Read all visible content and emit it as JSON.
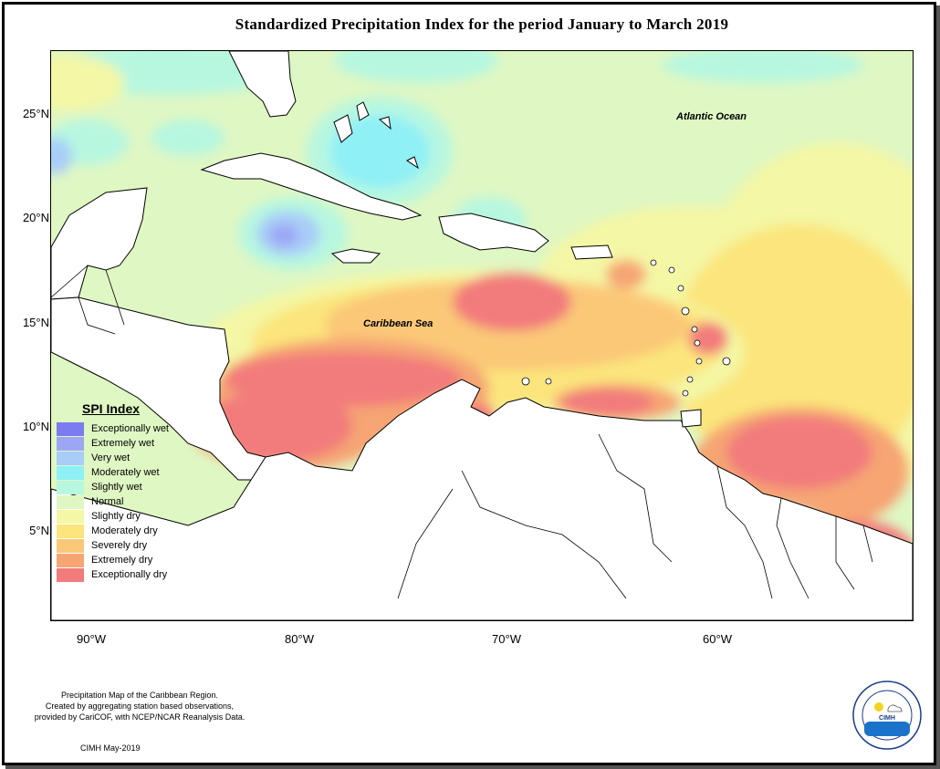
{
  "title": "Standardized Precipitation Index for the period January to March 2019",
  "axes": {
    "lat_labels": [
      "25°N",
      "20°N",
      "15°N",
      "10°N",
      "5°N"
    ],
    "lon_labels": [
      "90°W",
      "80°W",
      "70°W",
      "60°W"
    ]
  },
  "map_labels": {
    "atlantic": "Atlantic Ocean",
    "caribbean": "Caribbean Sea"
  },
  "legend": {
    "title": "SPI Index",
    "items": [
      {
        "label": "Exceptionally wet",
        "color": "#7b7cf0"
      },
      {
        "label": "Extremely wet",
        "color": "#9da6f5"
      },
      {
        "label": "Very wet",
        "color": "#a8cdf8"
      },
      {
        "label": "Moderately wet",
        "color": "#8ff0f6"
      },
      {
        "label": "Slightly wet",
        "color": "#b7f7e0"
      },
      {
        "label": "Normal",
        "color": "#dff7c3"
      },
      {
        "label": "Slightly dry",
        "color": "#f4f7a4"
      },
      {
        "label": "Moderately dry",
        "color": "#fbe57c"
      },
      {
        "label": "Severely dry",
        "color": "#fbc878"
      },
      {
        "label": "Extremely dry",
        "color": "#f6a573"
      },
      {
        "label": "Exceptionally dry",
        "color": "#f27b7b"
      }
    ]
  },
  "footer": {
    "lines": [
      "Precipitation Map of the Caribbean Region.",
      "Created by aggregating station based observations,",
      "provided by CariCOF, with NCEP/NCAR Reanalysis Data."
    ],
    "date": "CIMH May-2019"
  },
  "logo": {
    "text": "CIMH",
    "ring_text": "Caribbean Institute for Meteorology and Hydrology"
  }
}
